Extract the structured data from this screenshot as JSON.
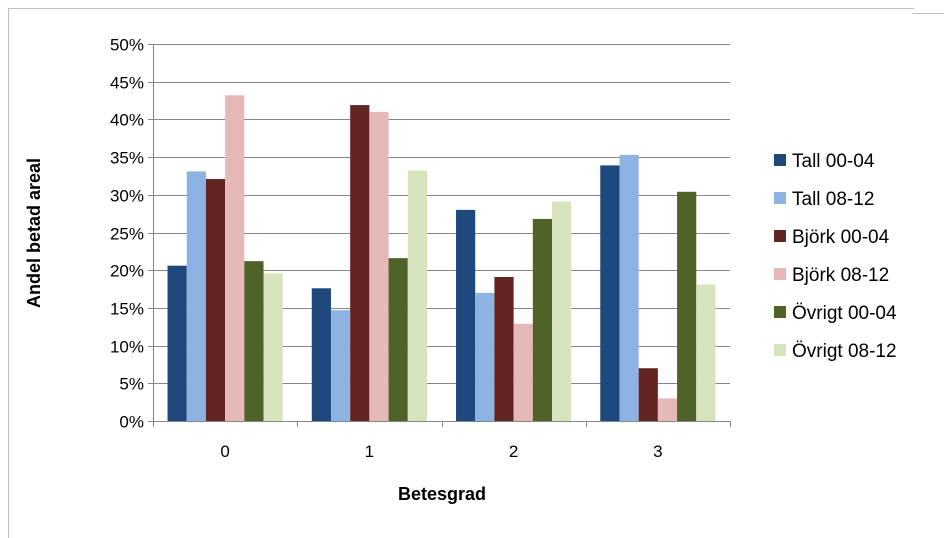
{
  "chart_data": {
    "type": "bar",
    "title": "",
    "xlabel": "Betesgrad",
    "ylabel": "Andel betad areal",
    "categories": [
      "0",
      "1",
      "2",
      "3"
    ],
    "ylim": [
      0,
      50
    ],
    "yticks": [
      "0%",
      "5%",
      "10%",
      "15%",
      "20%",
      "25%",
      "30%",
      "35%",
      "40%",
      "45%",
      "50%"
    ],
    "grid": true,
    "legend_position": "right",
    "series": [
      {
        "name": "Tall 00-04",
        "color": "#1f497d",
        "values": [
          20.6,
          17.6,
          28.0,
          33.9
        ]
      },
      {
        "name": "Tall 08-12",
        "color": "#8db3e2",
        "values": [
          33.1,
          14.7,
          17.0,
          35.3
        ]
      },
      {
        "name": "Björk 00-04",
        "color": "#632523",
        "values": [
          32.1,
          41.9,
          19.1,
          7.0
        ]
      },
      {
        "name": "Björk 08-12",
        "color": "#e6b9b8",
        "values": [
          43.2,
          41.0,
          12.9,
          3.0
        ]
      },
      {
        "name": "Övrigt 00-04",
        "color": "#4f6228",
        "values": [
          21.2,
          21.6,
          26.8,
          30.4
        ]
      },
      {
        "name": "Övrigt 08-12",
        "color": "#d7e4bd",
        "values": [
          19.6,
          33.2,
          29.1,
          18.1
        ]
      }
    ]
  }
}
